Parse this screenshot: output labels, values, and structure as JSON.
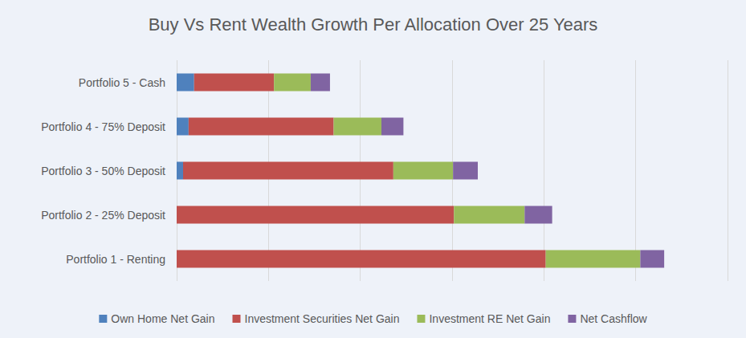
{
  "chart_data": {
    "type": "bar",
    "title": "Buy Vs Rent Wealth Growth Per Allocation Over 25 Years",
    "orientation": "horizontal",
    "stacked": true,
    "grid": true,
    "legend": "bottom",
    "tick_labels": "y",
    "categories": [
      "Portfolio 5 - Cash",
      "Portfolio 4 - 75% Deposit",
      "Portfolio 3 - 50% Deposit",
      "Portfolio 2 - 25% Deposit",
      "Portfolio 1 - Renting"
    ],
    "series": [
      {
        "name": "Own Home Net Gain",
        "color": "#4f81bd",
        "values": [
          0.19,
          0.13,
          0.07,
          0,
          0
        ]
      },
      {
        "name": "Investment Securities Net Gain",
        "color": "#c0504d",
        "values": [
          0.87,
          1.58,
          2.29,
          3.02,
          4.02
        ]
      },
      {
        "name": "Investment RE Net Gain",
        "color": "#9bbb59",
        "values": [
          0.4,
          0.52,
          0.65,
          0.77,
          1.03
        ]
      },
      {
        "name": "Net Cashflow",
        "color": "#8064a2",
        "values": [
          0.21,
          0.24,
          0.27,
          0.3,
          0.26
        ]
      }
    ],
    "xlim": [
      0,
      6
    ],
    "xticks": [
      0,
      1,
      2,
      3,
      4,
      5,
      6
    ]
  }
}
